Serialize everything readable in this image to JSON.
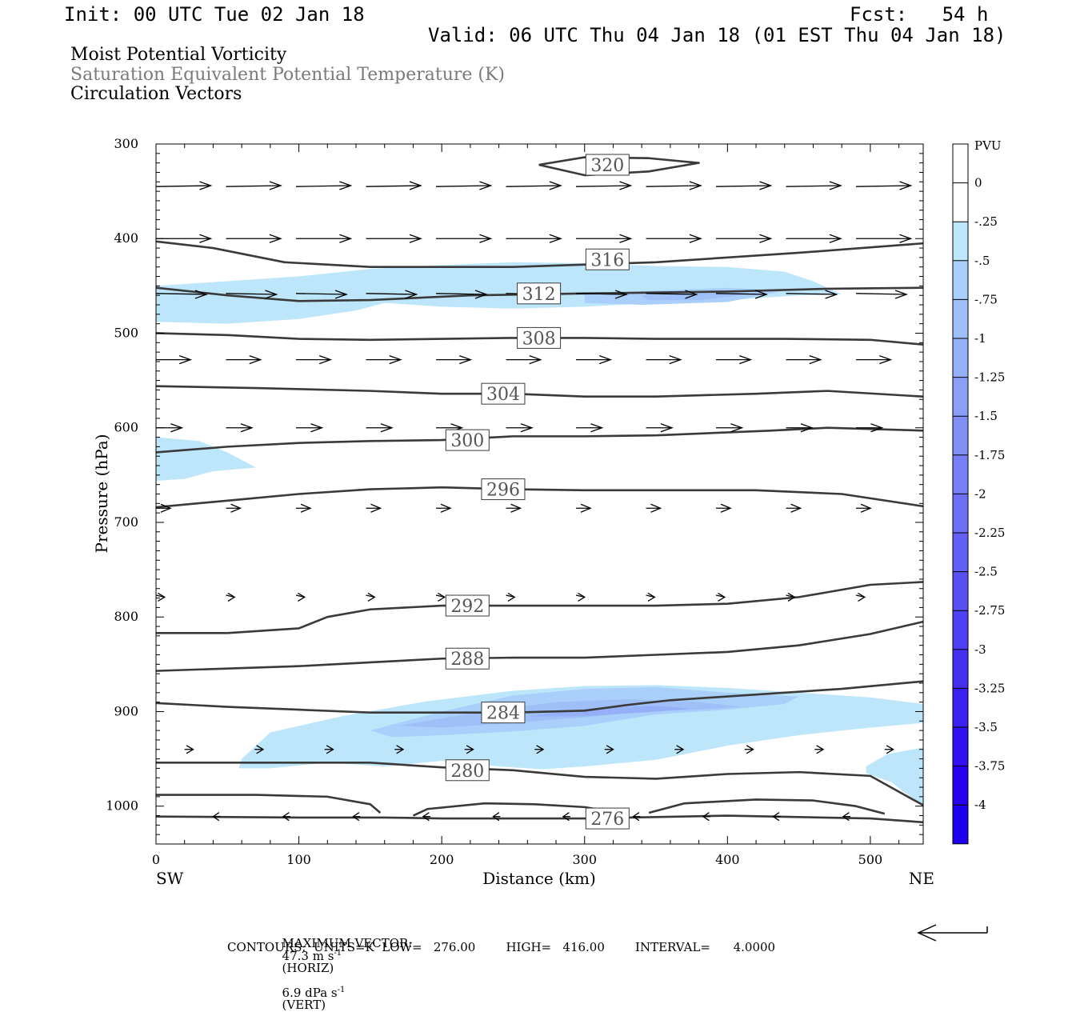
{
  "header": {
    "init": "Init: 00 UTC Tue 02 Jan 18",
    "fcst": "Fcst:   54 h",
    "valid": "Valid: 06 UTC Thu 04 Jan 18 (01 EST Thu 04 Jan 18)"
  },
  "fields": {
    "shaded": "Moist Potential Vorticity",
    "contour": "Saturation Equivalent Potential Temperature (K)",
    "vectors": "Circulation Vectors"
  },
  "footer": {
    "max_vector_label": "MAXIMUM VECTOR:",
    "max_horiz": "47.3 m s",
    "horiz_tag": "(HORIZ)",
    "max_vert": "6.9 dPa s",
    "vert_tag": "(VERT)",
    "exp": "-1",
    "contours_line": "CONTOURS:  UNITS=K  LOW=   276.00        HIGH=   416.00        INTERVAL=      4.0000"
  },
  "chart_data": {
    "type": "contour",
    "xlabel": "Distance (km)",
    "ylabel": "Pressure (hPa)",
    "x_left_label": "SW",
    "x_right_label": "NE",
    "xlim": [
      0,
      537
    ],
    "ylim": [
      300,
      1040
    ],
    "xticks": [
      0,
      100,
      200,
      300,
      400,
      500
    ],
    "yticks": [
      300,
      400,
      500,
      600,
      700,
      800,
      900,
      1000
    ],
    "colorbar": {
      "title": "PVU",
      "levels": [
        "0",
        "-.25",
        "-.5",
        "-.75",
        "-1",
        "-1.25",
        "-1.5",
        "-1.75",
        "-2",
        "-2.25",
        "-2.5",
        "-2.75",
        "-3",
        "-3.25",
        "-3.5",
        "-3.75",
        "-4"
      ],
      "colors": [
        "#ffffff",
        "#ffffff",
        "#bde6fb",
        "#a9cffa",
        "#9fbff9",
        "#95aff8",
        "#8b9ff8",
        "#818ff7",
        "#7780f6",
        "#6d70f5",
        "#6360f5",
        "#5950f4",
        "#4f40f3",
        "#4530f2",
        "#3b20f2",
        "#3110f1",
        "#2700f0",
        "#1d00ef"
      ]
    },
    "contours": [
      {
        "label": "320",
        "points": [
          [
            268,
            322
          ],
          [
            300,
            314
          ],
          [
            345,
            315
          ],
          [
            380,
            320
          ],
          [
            345,
            329
          ],
          [
            300,
            333
          ],
          [
            268,
            322
          ]
        ]
      },
      {
        "label": "316",
        "points": [
          [
            0,
            403
          ],
          [
            40,
            410
          ],
          [
            90,
            425
          ],
          [
            150,
            430
          ],
          [
            250,
            430
          ],
          [
            350,
            425
          ],
          [
            450,
            415
          ],
          [
            537,
            405
          ]
        ]
      },
      {
        "label": "312",
        "points": [
          [
            0,
            452
          ],
          [
            50,
            460
          ],
          [
            100,
            466
          ],
          [
            150,
            465
          ],
          [
            220,
            460
          ],
          [
            300,
            458
          ],
          [
            400,
            456
          ],
          [
            470,
            453
          ],
          [
            537,
            452
          ]
        ]
      },
      {
        "label": "308",
        "points": [
          [
            0,
            500
          ],
          [
            50,
            502
          ],
          [
            100,
            506
          ],
          [
            150,
            507
          ],
          [
            250,
            505
          ],
          [
            300,
            505
          ],
          [
            350,
            506
          ],
          [
            440,
            506
          ],
          [
            500,
            507
          ],
          [
            537,
            512
          ]
        ]
      },
      {
        "label": "304",
        "points": [
          [
            0,
            556
          ],
          [
            70,
            558
          ],
          [
            150,
            561
          ],
          [
            200,
            564
          ],
          [
            250,
            564
          ],
          [
            300,
            567
          ],
          [
            350,
            567
          ],
          [
            420,
            564
          ],
          [
            470,
            561
          ],
          [
            537,
            567
          ]
        ]
      },
      {
        "label": "300",
        "points": [
          [
            0,
            626
          ],
          [
            50,
            620
          ],
          [
            100,
            616
          ],
          [
            150,
            614
          ],
          [
            200,
            613
          ],
          [
            250,
            609
          ],
          [
            300,
            609
          ],
          [
            350,
            608
          ],
          [
            430,
            603
          ],
          [
            470,
            600
          ],
          [
            537,
            603
          ]
        ]
      },
      {
        "label": "296",
        "points": [
          [
            0,
            684
          ],
          [
            50,
            677
          ],
          [
            100,
            670
          ],
          [
            150,
            665
          ],
          [
            200,
            663
          ],
          [
            250,
            665
          ],
          [
            300,
            666
          ],
          [
            350,
            666
          ],
          [
            420,
            666
          ],
          [
            480,
            670
          ],
          [
            537,
            683
          ]
        ]
      },
      {
        "label": "292",
        "points": [
          [
            0,
            817
          ],
          [
            50,
            817
          ],
          [
            100,
            812
          ],
          [
            120,
            800
          ],
          [
            150,
            792
          ],
          [
            200,
            788
          ],
          [
            250,
            788
          ],
          [
            300,
            788
          ],
          [
            350,
            788
          ],
          [
            400,
            786
          ],
          [
            450,
            779
          ],
          [
            500,
            766
          ],
          [
            537,
            763
          ]
        ]
      },
      {
        "label": "288",
        "points": [
          [
            0,
            857
          ],
          [
            100,
            852
          ],
          [
            150,
            848
          ],
          [
            200,
            844
          ],
          [
            250,
            843
          ],
          [
            300,
            843
          ],
          [
            350,
            840
          ],
          [
            400,
            837
          ],
          [
            450,
            830
          ],
          [
            500,
            818
          ],
          [
            537,
            805
          ]
        ]
      },
      {
        "label": "284",
        "points": [
          [
            0,
            891
          ],
          [
            50,
            895
          ],
          [
            100,
            898
          ],
          [
            150,
            901
          ],
          [
            200,
            901
          ],
          [
            250,
            901
          ],
          [
            300,
            899
          ],
          [
            330,
            893
          ],
          [
            360,
            888
          ],
          [
            420,
            882
          ],
          [
            480,
            876
          ],
          [
            537,
            868
          ]
        ]
      },
      {
        "label": "280",
        "points": [
          [
            0,
            954
          ],
          [
            100,
            954
          ],
          [
            150,
            954
          ],
          [
            200,
            959
          ],
          [
            250,
            962
          ],
          [
            300,
            969
          ],
          [
            350,
            971
          ],
          [
            400,
            966
          ],
          [
            450,
            964
          ],
          [
            500,
            968
          ],
          [
            537,
            999
          ]
        ]
      },
      {
        "label": "276",
        "points": [
          [
            0,
            1011
          ],
          [
            100,
            1012
          ],
          [
            160,
            1012
          ],
          [
            200,
            1013
          ],
          [
            300,
            1013
          ],
          [
            400,
            1010
          ],
          [
            500,
            1013
          ],
          [
            537,
            1017
          ]
        ]
      },
      {
        "label": "",
        "points": [
          [
            0,
            988
          ],
          [
            70,
            988
          ],
          [
            120,
            990
          ],
          [
            150,
            998
          ],
          [
            157,
            1007
          ]
        ]
      },
      {
        "label": "",
        "points": [
          [
            180,
            1010
          ],
          [
            190,
            1003
          ],
          [
            230,
            997
          ],
          [
            265,
            998
          ],
          [
            300,
            1001
          ],
          [
            320,
            1006
          ]
        ]
      },
      {
        "label": "",
        "points": [
          [
            345,
            1007
          ],
          [
            370,
            997
          ],
          [
            420,
            993
          ],
          [
            460,
            994
          ],
          [
            490,
            1000
          ],
          [
            510,
            1008
          ]
        ]
      }
    ],
    "shaded_regions": [
      {
        "level": "-.25",
        "points": [
          [
            0,
            450
          ],
          [
            50,
            445
          ],
          [
            100,
            440
          ],
          [
            150,
            432
          ],
          [
            200,
            428
          ],
          [
            250,
            425
          ],
          [
            300,
            426
          ],
          [
            350,
            429
          ],
          [
            400,
            430
          ],
          [
            440,
            435
          ],
          [
            460,
            445
          ],
          [
            480,
            459
          ],
          [
            450,
            460
          ],
          [
            400,
            465
          ],
          [
            350,
            468
          ],
          [
            300,
            472
          ],
          [
            250,
            474
          ],
          [
            200,
            472
          ],
          [
            180,
            470
          ],
          [
            160,
            468
          ],
          [
            140,
            476
          ],
          [
            100,
            485
          ],
          [
            50,
            490
          ],
          [
            0,
            488
          ]
        ]
      },
      {
        "level": "-.25",
        "points": [
          [
            0,
            610
          ],
          [
            30,
            614
          ],
          [
            50,
            626
          ],
          [
            70,
            642
          ],
          [
            40,
            646
          ],
          [
            20,
            654
          ],
          [
            0,
            656
          ]
        ]
      },
      {
        "level": "-.25",
        "points": [
          [
            60,
            950
          ],
          [
            80,
            922
          ],
          [
            130,
            905
          ],
          [
            190,
            889
          ],
          [
            250,
            878
          ],
          [
            300,
            873
          ],
          [
            350,
            872
          ],
          [
            400,
            875
          ],
          [
            450,
            880
          ],
          [
            500,
            885
          ],
          [
            537,
            892
          ],
          [
            537,
            912
          ],
          [
            500,
            917
          ],
          [
            450,
            925
          ],
          [
            400,
            936
          ],
          [
            350,
            951
          ],
          [
            300,
            958
          ],
          [
            270,
            961
          ],
          [
            240,
            958
          ],
          [
            200,
            952
          ],
          [
            160,
            958
          ],
          [
            120,
            954
          ],
          [
            80,
            960
          ],
          [
            58,
            960
          ]
        ]
      },
      {
        "level": "-.25",
        "points": [
          [
            497,
            958
          ],
          [
            512,
            945
          ],
          [
            537,
            938
          ],
          [
            537,
            1000
          ],
          [
            528,
            990
          ],
          [
            515,
            975
          ],
          [
            497,
            965
          ]
        ]
      },
      {
        "level": "-.5",
        "points": [
          [
            300,
            458
          ],
          [
            400,
            452
          ],
          [
            440,
            455
          ],
          [
            400,
            467
          ],
          [
            340,
            470
          ],
          [
            300,
            468
          ]
        ]
      },
      {
        "level": "-.5",
        "points": [
          [
            150,
            920
          ],
          [
            200,
            900
          ],
          [
            250,
            883
          ],
          [
            300,
            876
          ],
          [
            350,
            874
          ],
          [
            400,
            880
          ],
          [
            450,
            884
          ],
          [
            440,
            892
          ],
          [
            400,
            898
          ],
          [
            350,
            903
          ],
          [
            300,
            915
          ],
          [
            250,
            921
          ],
          [
            200,
            925
          ],
          [
            165,
            927
          ]
        ]
      },
      {
        "level": "-.75",
        "points": [
          [
            340,
            460
          ],
          [
            380,
            456
          ],
          [
            420,
            458
          ],
          [
            380,
            465
          ],
          [
            345,
            465
          ]
        ]
      },
      {
        "level": "-.75",
        "points": [
          [
            170,
            915
          ],
          [
            220,
            902
          ],
          [
            280,
            890
          ],
          [
            330,
            887
          ],
          [
            380,
            890
          ],
          [
            410,
            895
          ],
          [
            380,
            898
          ],
          [
            340,
            900
          ],
          [
            300,
            906
          ],
          [
            250,
            912
          ],
          [
            200,
            917
          ]
        ]
      },
      {
        "level": "-1",
        "points": [
          [
            260,
            905
          ],
          [
            300,
            897
          ],
          [
            350,
            894
          ],
          [
            375,
            897
          ],
          [
            350,
            900
          ],
          [
            300,
            905
          ]
        ]
      }
    ],
    "contour_labels": [
      {
        "text": "320",
        "x": 316,
        "y": 322
      },
      {
        "text": "316",
        "x": 316,
        "y": 422
      },
      {
        "text": "312",
        "x": 268,
        "y": 458
      },
      {
        "text": "308",
        "x": 268,
        "y": 505
      },
      {
        "text": "304",
        "x": 243,
        "y": 564
      },
      {
        "text": "300",
        "x": 218,
        "y": 613
      },
      {
        "text": "296",
        "x": 243,
        "y": 665
      },
      {
        "text": "292",
        "x": 218,
        "y": 788
      },
      {
        "text": "288",
        "x": 218,
        "y": 844
      },
      {
        "text": "284",
        "x": 243,
        "y": 901
      },
      {
        "text": "280",
        "x": 218,
        "y": 962
      },
      {
        "text": "276",
        "x": 316,
        "y": 1013
      }
    ],
    "vectors": [
      {
        "p": 345,
        "x0": 0,
        "len": 38,
        "dp": -1
      },
      {
        "p": 400,
        "x0": 0,
        "len": 38,
        "dp": 0
      },
      {
        "p": 458,
        "x0": 0,
        "len": 35,
        "dp": 1
      },
      {
        "p": 528,
        "x0": 0,
        "len": 24,
        "dp": 0
      },
      {
        "p": 600,
        "x0": 0,
        "len": 18,
        "dp": 0
      },
      {
        "p": 685,
        "x0": 0,
        "len": 10,
        "dp": 0
      },
      {
        "p": 777,
        "x0": 0,
        "len": 6,
        "dp": 2
      },
      {
        "p": 940,
        "x0": 20,
        "len": 6,
        "dp": 0
      },
      {
        "p": 1011,
        "x0": 45,
        "len": -5,
        "dp": 0
      }
    ]
  }
}
